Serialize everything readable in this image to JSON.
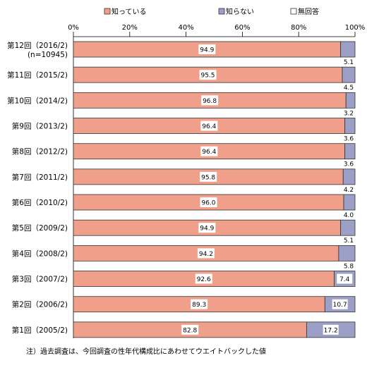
{
  "colors": {
    "known": "#f0a08a",
    "unknown": "#9da0c6",
    "no_answer": "#ffffff",
    "stroke": "#333333",
    "grid": "#000000"
  },
  "chart_data": {
    "type": "bar",
    "orientation": "horizontal",
    "stacked": true,
    "xlim": [
      0,
      100
    ],
    "x_ticks": [
      "0%",
      "20%",
      "40%",
      "60%",
      "80%",
      "100%"
    ],
    "legend_position": "top",
    "categories": [
      [
        "第12回（2016/2)",
        "(n=10945)"
      ],
      [
        "第11回（2015/2)"
      ],
      [
        "第10回（2014/2)"
      ],
      [
        "第9回（2013/2)"
      ],
      [
        "第8回（2012/2)"
      ],
      [
        "第7回（2011/2)"
      ],
      [
        "第6回（2010/2)"
      ],
      [
        "第5回（2009/2)"
      ],
      [
        "第4回（2008/2)"
      ],
      [
        "第3回（2007/2)"
      ],
      [
        "第2回（2006/2)"
      ],
      [
        "第1回（2005/2)"
      ]
    ],
    "series": [
      {
        "name": "知っている",
        "values": [
          94.9,
          95.5,
          96.8,
          96.4,
          96.4,
          95.8,
          96.0,
          94.9,
          94.2,
          92.6,
          89.3,
          82.8
        ]
      },
      {
        "name": "知らない",
        "values": [
          5.1,
          4.5,
          3.2,
          3.6,
          3.6,
          4.2,
          4.0,
          5.1,
          5.8,
          7.4,
          10.7,
          17.2
        ]
      },
      {
        "name": "無回答",
        "values": [
          0.0,
          0.0,
          0.0,
          0.0,
          0.0,
          0.0,
          0.0,
          0.0,
          0.0,
          0.0,
          0.0,
          0.0
        ]
      }
    ],
    "data_labels": {
      "known": [
        "94.9",
        "95.5",
        "96.8",
        "96.4",
        "96.4",
        "95.8",
        "96.0",
        "94.9",
        "94.2",
        "92.6",
        "89.3",
        "82.8"
      ],
      "unknown": [
        "5.1",
        "4.5",
        "3.2",
        "3.6",
        "3.6",
        "4.2",
        "4.0",
        "5.1",
        "5.8",
        "7.4",
        "10.7",
        "17.2"
      ],
      "unknown_label_inside": [
        false,
        false,
        false,
        false,
        false,
        false,
        false,
        false,
        false,
        true,
        true,
        true
      ]
    },
    "footnote": "注）過去調査は、今回調査の性年代構成比にあわせてウエイトバックした値"
  }
}
